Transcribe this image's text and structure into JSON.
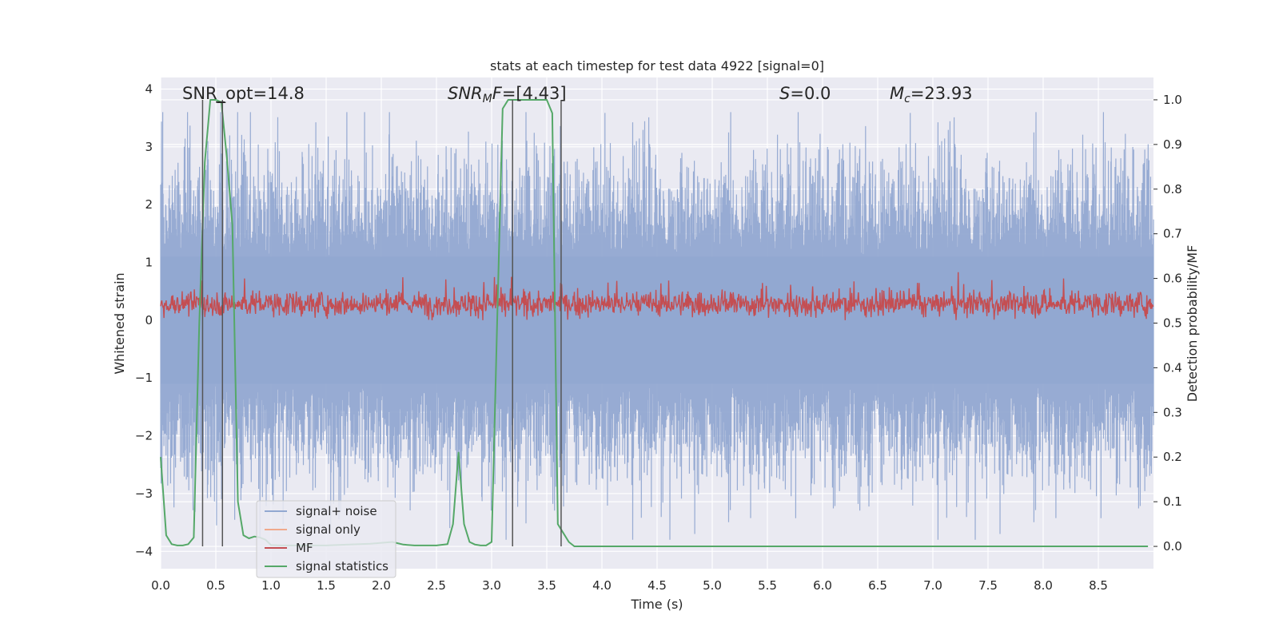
{
  "chart_data": {
    "type": "line",
    "title": "stats at each timestep for test data 4922 [signal=0]",
    "xlabel": "Time (s)",
    "ylabel": "Whitened strain",
    "ylabel_right": "Detection probability/MF",
    "xlim": [
      0.0,
      9.0
    ],
    "ylim": [
      -4.3,
      4.2
    ],
    "ylim_right": [
      -0.05,
      1.05
    ],
    "xticks": [
      "0.0",
      "0.5",
      "1.0",
      "1.5",
      "2.0",
      "2.5",
      "3.0",
      "3.5",
      "4.0",
      "4.5",
      "5.0",
      "5.5",
      "6.0",
      "6.5",
      "7.0",
      "7.5",
      "8.0",
      "8.5"
    ],
    "yticks": [
      "4",
      "3",
      "2",
      "1",
      "0",
      "−1",
      "−2",
      "−3",
      "−4"
    ],
    "yticks_right": [
      "1.0",
      "0.9",
      "0.8",
      "0.7",
      "0.6",
      "0.5",
      "0.4",
      "0.3",
      "0.2",
      "0.1",
      "0.0"
    ],
    "annotations": {
      "snr_opt": "SNR_opt=14.8",
      "snr_mf": "=[4.43]",
      "snr_mf_sym": "SNR",
      "snr_mf_sub": "M",
      "snr_mf_tail": "F",
      "s_sym": "S",
      "s_val": "=0.0",
      "mc_sym": "M",
      "mc_sub": "c",
      "mc_val": "=23.93"
    },
    "legend": {
      "placement": "lower-left",
      "entries": [
        {
          "label": "signal+ noise",
          "color": "#92a8d1"
        },
        {
          "label": "signal only",
          "color": "#f0a98c"
        },
        {
          "label": "MF",
          "color": "#c44e52"
        },
        {
          "label": "signal statistics",
          "color": "#55a868"
        }
      ]
    },
    "series": [
      {
        "name": "signal+ noise",
        "color": "#92a8d1",
        "description": "whitened strain noise, amplitude roughly between -3.8 and 3.6"
      },
      {
        "name": "MF",
        "color": "#c44e52",
        "description": "matched filter output, roughly 0 to 1"
      },
      {
        "name": "signal statistics",
        "color": "#55a868",
        "x": [
          0.0,
          0.05,
          0.1,
          0.15,
          0.2,
          0.25,
          0.3,
          0.35,
          0.4,
          0.45,
          0.5,
          0.55,
          0.6,
          0.65,
          0.7,
          0.75,
          0.8,
          0.85,
          0.9,
          0.95,
          1.0,
          1.1,
          1.2,
          1.3,
          1.5,
          1.7,
          1.9,
          2.1,
          2.2,
          2.3,
          2.4,
          2.5,
          2.6,
          2.65,
          2.7,
          2.75,
          2.8,
          2.85,
          2.9,
          2.95,
          3.0,
          3.05,
          3.1,
          3.15,
          3.2,
          3.25,
          3.3,
          3.35,
          3.4,
          3.45,
          3.5,
          3.55,
          3.6,
          3.65,
          3.7,
          3.75,
          3.8,
          4.0,
          5.0,
          6.0,
          7.0,
          8.0,
          8.95
        ],
        "y": [
          0.2,
          0.025,
          0.005,
          0.002,
          0.002,
          0.005,
          0.02,
          0.5,
          0.86,
          1.0,
          1.0,
          0.995,
          0.87,
          0.72,
          0.1,
          0.025,
          0.018,
          0.022,
          0.02,
          0.015,
          0.003,
          0.002,
          0.002,
          0.002,
          0.002,
          0.004,
          0.006,
          0.01,
          0.004,
          0.002,
          0.002,
          0.002,
          0.005,
          0.05,
          0.21,
          0.05,
          0.01,
          0.004,
          0.002,
          0.002,
          0.01,
          0.5,
          0.98,
          1.0,
          1.0,
          1.0,
          1.0,
          1.0,
          1.0,
          1.0,
          1.0,
          0.97,
          0.05,
          0.03,
          0.01,
          0.0,
          0.0,
          0.0,
          0.0,
          0.0,
          0.0,
          0.0,
          0.0
        ]
      }
    ],
    "vertical_markers": [
      0.38,
      0.56,
      3.19,
      3.63
    ],
    "grid": true
  }
}
